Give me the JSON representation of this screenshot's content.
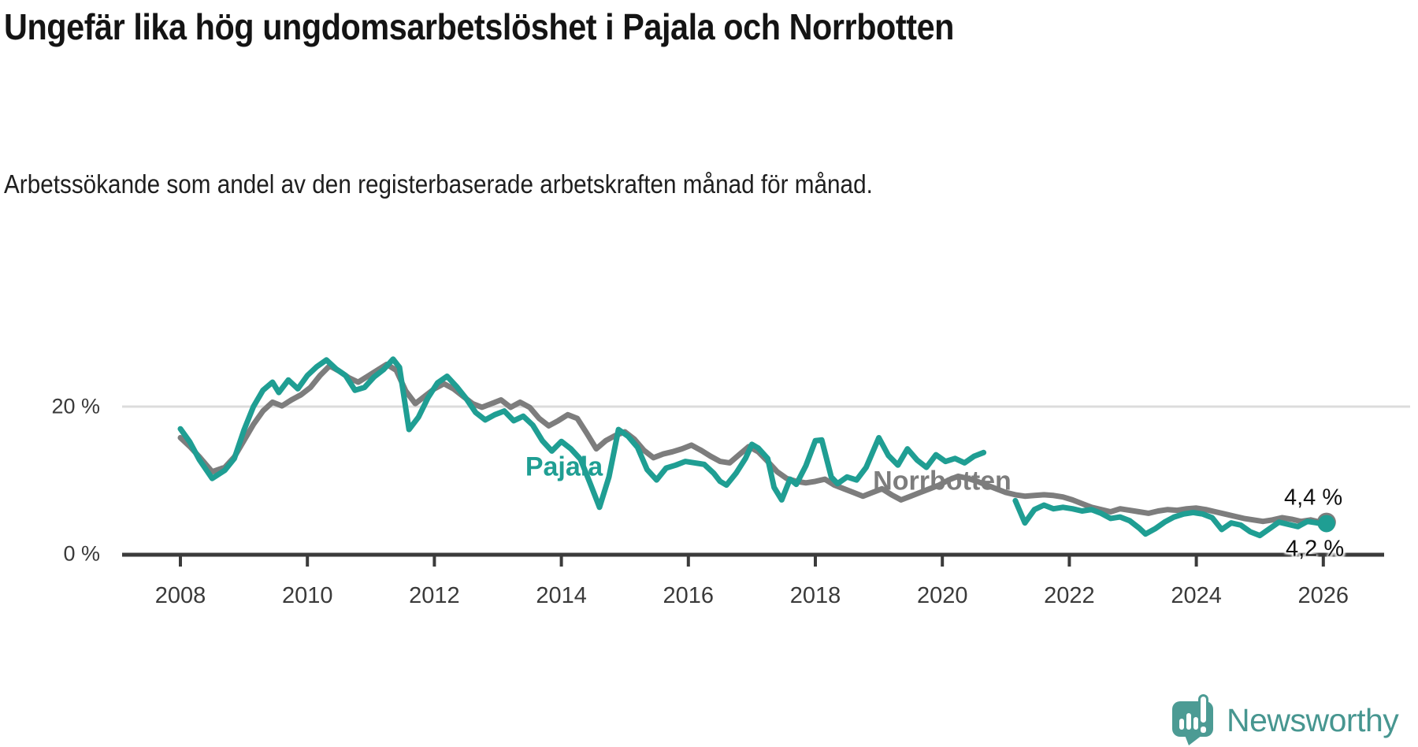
{
  "chart_data": {
    "type": "line",
    "title": "Ungefär lika hög ungdomsarbetslöshet i Pajala och Norrbotten",
    "subtitle": "Arbetssökande som andel av den registerbaserade arbetskraften månad för månad.",
    "unit": "%",
    "x_axis": {
      "ticks": [
        "2008",
        "2010",
        "2012",
        "2014",
        "2016",
        "2018",
        "2020",
        "2022",
        "2024",
        "2026"
      ],
      "range": [
        2007.1,
        2027
      ]
    },
    "y_axis": {
      "ticks": [
        {
          "value": 0,
          "label": "0 %"
        },
        {
          "value": 20,
          "label": "20 %"
        }
      ],
      "range": [
        0,
        30
      ],
      "grid": "line at 20 only, baseline axis at 0"
    },
    "legend": "inline labels on lines, value labels at line ends",
    "series": [
      {
        "name": "Pajala",
        "color": "#1F9E93",
        "end_label": "4,2 %",
        "end_value": 4.2,
        "points": [
          [
            2008.0,
            17.0
          ],
          [
            2008.15,
            15.2
          ],
          [
            2008.3,
            12.8
          ],
          [
            2008.5,
            10.3
          ],
          [
            2008.7,
            11.4
          ],
          [
            2008.85,
            13.0
          ],
          [
            2009.0,
            16.8
          ],
          [
            2009.15,
            20.0
          ],
          [
            2009.3,
            22.2
          ],
          [
            2009.45,
            23.3
          ],
          [
            2009.55,
            21.9
          ],
          [
            2009.7,
            23.6
          ],
          [
            2009.85,
            22.4
          ],
          [
            2010.0,
            24.2
          ],
          [
            2010.15,
            25.4
          ],
          [
            2010.3,
            26.3
          ],
          [
            2010.45,
            25.1
          ],
          [
            2010.6,
            24.2
          ],
          [
            2010.75,
            22.2
          ],
          [
            2010.9,
            22.6
          ],
          [
            2011.05,
            24.0
          ],
          [
            2011.2,
            25.0
          ],
          [
            2011.35,
            26.4
          ],
          [
            2011.45,
            25.3
          ],
          [
            2011.6,
            16.9
          ],
          [
            2011.75,
            18.6
          ],
          [
            2011.9,
            21.2
          ],
          [
            2012.05,
            23.2
          ],
          [
            2012.2,
            24.1
          ],
          [
            2012.35,
            22.7
          ],
          [
            2012.5,
            21.1
          ],
          [
            2012.65,
            19.2
          ],
          [
            2012.8,
            18.2
          ],
          [
            2012.95,
            18.9
          ],
          [
            2013.1,
            19.4
          ],
          [
            2013.25,
            18.1
          ],
          [
            2013.4,
            18.7
          ],
          [
            2013.55,
            17.5
          ],
          [
            2013.7,
            15.4
          ],
          [
            2013.85,
            14.0
          ],
          [
            2014.0,
            15.3
          ],
          [
            2014.15,
            14.3
          ],
          [
            2014.3,
            12.9
          ],
          [
            2014.45,
            9.7
          ],
          [
            2014.6,
            6.4
          ],
          [
            2014.75,
            10.5
          ],
          [
            2014.9,
            16.9
          ],
          [
            2015.05,
            16.0
          ],
          [
            2015.2,
            14.5
          ],
          [
            2015.35,
            11.5
          ],
          [
            2015.5,
            10.1
          ],
          [
            2015.65,
            11.7
          ],
          [
            2015.8,
            12.1
          ],
          [
            2015.95,
            12.6
          ],
          [
            2016.1,
            12.4
          ],
          [
            2016.25,
            12.2
          ],
          [
            2016.4,
            11.0
          ],
          [
            2016.5,
            9.9
          ],
          [
            2016.6,
            9.4
          ],
          [
            2016.75,
            11.0
          ],
          [
            2016.9,
            13.0
          ],
          [
            2017.0,
            14.9
          ],
          [
            2017.1,
            14.4
          ],
          [
            2017.25,
            13.0
          ],
          [
            2017.35,
            9.1
          ],
          [
            2017.47,
            7.4
          ],
          [
            2017.6,
            10.2
          ],
          [
            2017.7,
            9.5
          ],
          [
            2017.85,
            12.0
          ],
          [
            2018.0,
            15.4
          ],
          [
            2018.1,
            15.5
          ],
          [
            2018.25,
            10.5
          ],
          [
            2018.35,
            9.6
          ],
          [
            2018.5,
            10.5
          ],
          [
            2018.65,
            10.1
          ],
          [
            2018.8,
            11.8
          ],
          [
            2019.0,
            15.8
          ],
          [
            2019.15,
            13.4
          ],
          [
            2019.3,
            12.1
          ],
          [
            2019.45,
            14.3
          ],
          [
            2019.6,
            12.8
          ],
          [
            2019.75,
            11.8
          ],
          [
            2019.9,
            13.5
          ],
          [
            2020.05,
            12.6
          ],
          [
            2020.2,
            13.0
          ],
          [
            2020.35,
            12.4
          ],
          [
            2020.5,
            13.3
          ],
          [
            2020.65,
            13.8
          ],
          [
            2020.9,
            null
          ],
          [
            2021.15,
            7.3
          ],
          [
            2021.3,
            4.3
          ],
          [
            2021.45,
            6.1
          ],
          [
            2021.6,
            6.7
          ],
          [
            2021.75,
            6.2
          ],
          [
            2021.9,
            6.4
          ],
          [
            2022.05,
            6.2
          ],
          [
            2022.2,
            5.9
          ],
          [
            2022.35,
            6.1
          ],
          [
            2022.5,
            5.6
          ],
          [
            2022.65,
            4.9
          ],
          [
            2022.8,
            5.1
          ],
          [
            2022.95,
            4.6
          ],
          [
            2023.1,
            3.6
          ],
          [
            2023.2,
            2.8
          ],
          [
            2023.35,
            3.5
          ],
          [
            2023.5,
            4.4
          ],
          [
            2023.65,
            5.1
          ],
          [
            2023.8,
            5.5
          ],
          [
            2023.95,
            5.7
          ],
          [
            2024.1,
            5.5
          ],
          [
            2024.25,
            5.0
          ],
          [
            2024.4,
            3.4
          ],
          [
            2024.55,
            4.3
          ],
          [
            2024.7,
            4.0
          ],
          [
            2024.85,
            3.1
          ],
          [
            2025.0,
            2.6
          ],
          [
            2025.15,
            3.5
          ],
          [
            2025.3,
            4.4
          ],
          [
            2025.45,
            4.1
          ],
          [
            2025.6,
            3.8
          ],
          [
            2025.75,
            4.5
          ],
          [
            2025.9,
            4.3
          ],
          [
            2026.05,
            4.2
          ]
        ]
      },
      {
        "name": "Norrbotten",
        "color": "#7D7D7D",
        "end_label": "4,4 %",
        "end_value": 4.4,
        "points": [
          [
            2008.0,
            15.8
          ],
          [
            2008.15,
            14.6
          ],
          [
            2008.3,
            13.2
          ],
          [
            2008.5,
            11.2
          ],
          [
            2008.7,
            11.8
          ],
          [
            2008.85,
            13.2
          ],
          [
            2009.0,
            15.4
          ],
          [
            2009.15,
            17.6
          ],
          [
            2009.3,
            19.4
          ],
          [
            2009.45,
            20.6
          ],
          [
            2009.6,
            20.1
          ],
          [
            2009.75,
            20.9
          ],
          [
            2009.9,
            21.6
          ],
          [
            2010.05,
            22.6
          ],
          [
            2010.2,
            24.2
          ],
          [
            2010.35,
            25.5
          ],
          [
            2010.5,
            24.8
          ],
          [
            2010.65,
            23.9
          ],
          [
            2010.8,
            23.3
          ],
          [
            2010.95,
            24.1
          ],
          [
            2011.1,
            24.9
          ],
          [
            2011.25,
            25.7
          ],
          [
            2011.4,
            24.9
          ],
          [
            2011.55,
            22.1
          ],
          [
            2011.7,
            20.4
          ],
          [
            2011.85,
            21.4
          ],
          [
            2012.0,
            22.4
          ],
          [
            2012.15,
            23.1
          ],
          [
            2012.3,
            22.4
          ],
          [
            2012.45,
            21.4
          ],
          [
            2012.6,
            20.4
          ],
          [
            2012.75,
            19.9
          ],
          [
            2012.9,
            20.4
          ],
          [
            2013.05,
            20.9
          ],
          [
            2013.2,
            19.9
          ],
          [
            2013.35,
            20.6
          ],
          [
            2013.5,
            19.9
          ],
          [
            2013.65,
            18.4
          ],
          [
            2013.8,
            17.4
          ],
          [
            2013.95,
            18.1
          ],
          [
            2014.1,
            18.9
          ],
          [
            2014.25,
            18.4
          ],
          [
            2014.4,
            16.4
          ],
          [
            2014.55,
            14.3
          ],
          [
            2014.7,
            15.4
          ],
          [
            2014.85,
            16.1
          ],
          [
            2015.0,
            16.6
          ],
          [
            2015.15,
            15.6
          ],
          [
            2015.3,
            14.1
          ],
          [
            2015.45,
            13.1
          ],
          [
            2015.6,
            13.6
          ],
          [
            2015.75,
            13.9
          ],
          [
            2015.9,
            14.3
          ],
          [
            2016.05,
            14.8
          ],
          [
            2016.2,
            14.1
          ],
          [
            2016.35,
            13.3
          ],
          [
            2016.5,
            12.6
          ],
          [
            2016.65,
            12.4
          ],
          [
            2016.8,
            13.5
          ],
          [
            2016.95,
            14.6
          ],
          [
            2017.1,
            13.9
          ],
          [
            2017.25,
            12.6
          ],
          [
            2017.4,
            11.2
          ],
          [
            2017.55,
            10.3
          ],
          [
            2017.7,
            9.9
          ],
          [
            2017.85,
            9.7
          ],
          [
            2018.0,
            9.9
          ],
          [
            2018.15,
            10.2
          ],
          [
            2018.3,
            9.4
          ],
          [
            2018.45,
            8.9
          ],
          [
            2018.6,
            8.4
          ],
          [
            2018.75,
            7.9
          ],
          [
            2018.9,
            8.4
          ],
          [
            2019.05,
            8.9
          ],
          [
            2019.2,
            8.1
          ],
          [
            2019.35,
            7.4
          ],
          [
            2019.5,
            7.9
          ],
          [
            2019.65,
            8.4
          ],
          [
            2019.8,
            8.9
          ],
          [
            2019.95,
            9.4
          ],
          [
            2020.1,
            10.1
          ],
          [
            2020.25,
            10.6
          ],
          [
            2020.4,
            10.3
          ],
          [
            2020.55,
            9.9
          ],
          [
            2020.7,
            9.4
          ],
          [
            2020.85,
            8.9
          ],
          [
            2021.0,
            8.4
          ],
          [
            2021.15,
            8.1
          ],
          [
            2021.3,
            7.9
          ],
          [
            2021.45,
            8.0
          ],
          [
            2021.6,
            8.1
          ],
          [
            2021.75,
            8.0
          ],
          [
            2021.9,
            7.8
          ],
          [
            2022.05,
            7.4
          ],
          [
            2022.2,
            6.9
          ],
          [
            2022.35,
            6.4
          ],
          [
            2022.5,
            6.1
          ],
          [
            2022.65,
            5.8
          ],
          [
            2022.8,
            6.2
          ],
          [
            2022.95,
            6.0
          ],
          [
            2023.1,
            5.8
          ],
          [
            2023.25,
            5.6
          ],
          [
            2023.4,
            5.9
          ],
          [
            2023.55,
            6.1
          ],
          [
            2023.7,
            6.0
          ],
          [
            2023.85,
            6.2
          ],
          [
            2024.0,
            6.3
          ],
          [
            2024.15,
            6.1
          ],
          [
            2024.3,
            5.8
          ],
          [
            2024.45,
            5.5
          ],
          [
            2024.6,
            5.2
          ],
          [
            2024.75,
            4.9
          ],
          [
            2024.9,
            4.7
          ],
          [
            2025.05,
            4.5
          ],
          [
            2025.2,
            4.7
          ],
          [
            2025.35,
            5.0
          ],
          [
            2025.5,
            4.8
          ],
          [
            2025.65,
            4.5
          ],
          [
            2025.8,
            4.7
          ],
          [
            2025.95,
            4.4
          ],
          [
            2026.05,
            4.4
          ]
        ]
      }
    ],
    "colors": {
      "gridline": "#DCDCDC",
      "axis": "#3B3B3B",
      "tick_text": "#3a3a3a"
    }
  },
  "branding": {
    "logo_text": "Newsworthy",
    "accent_color": "#479690"
  }
}
